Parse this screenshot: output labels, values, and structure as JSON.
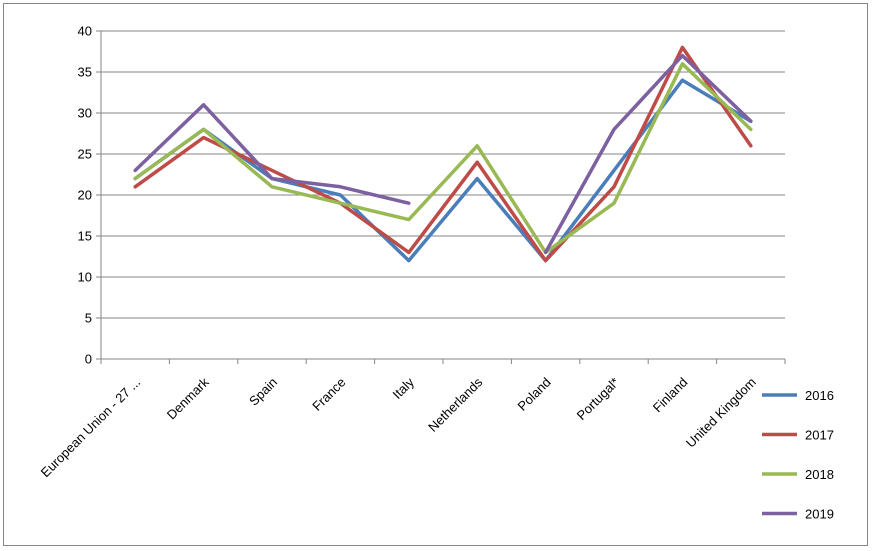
{
  "chart_data": {
    "type": "line",
    "title": "",
    "xlabel": "",
    "ylabel": "",
    "ylim": [
      0,
      40
    ],
    "yticks": [
      0,
      5,
      10,
      15,
      20,
      25,
      30,
      35,
      40
    ],
    "grid": true,
    "legend_position": "right",
    "categories": [
      "European Union - 27 ...",
      "Denmark",
      "Spain",
      "France",
      "Italy",
      "Netherlands",
      "Poland",
      "Portugal*",
      "Finland",
      "United Kingdom"
    ],
    "series": [
      {
        "name": "2016",
        "color": "#4a7ebb",
        "values": [
          22,
          28,
          22,
          20,
          12,
          22,
          12,
          23,
          34,
          29
        ]
      },
      {
        "name": "2017",
        "color": "#be4b48",
        "values": [
          21,
          27,
          23,
          19,
          13,
          24,
          12,
          21,
          38,
          26
        ]
      },
      {
        "name": "2018",
        "color": "#98b954",
        "values": [
          22,
          28,
          21,
          19,
          17,
          26,
          13,
          19,
          36,
          28
        ]
      },
      {
        "name": "2019",
        "color": "#7d60a0",
        "values": [
          23,
          31,
          22,
          21,
          19,
          null,
          13,
          28,
          37,
          29
        ]
      }
    ]
  }
}
